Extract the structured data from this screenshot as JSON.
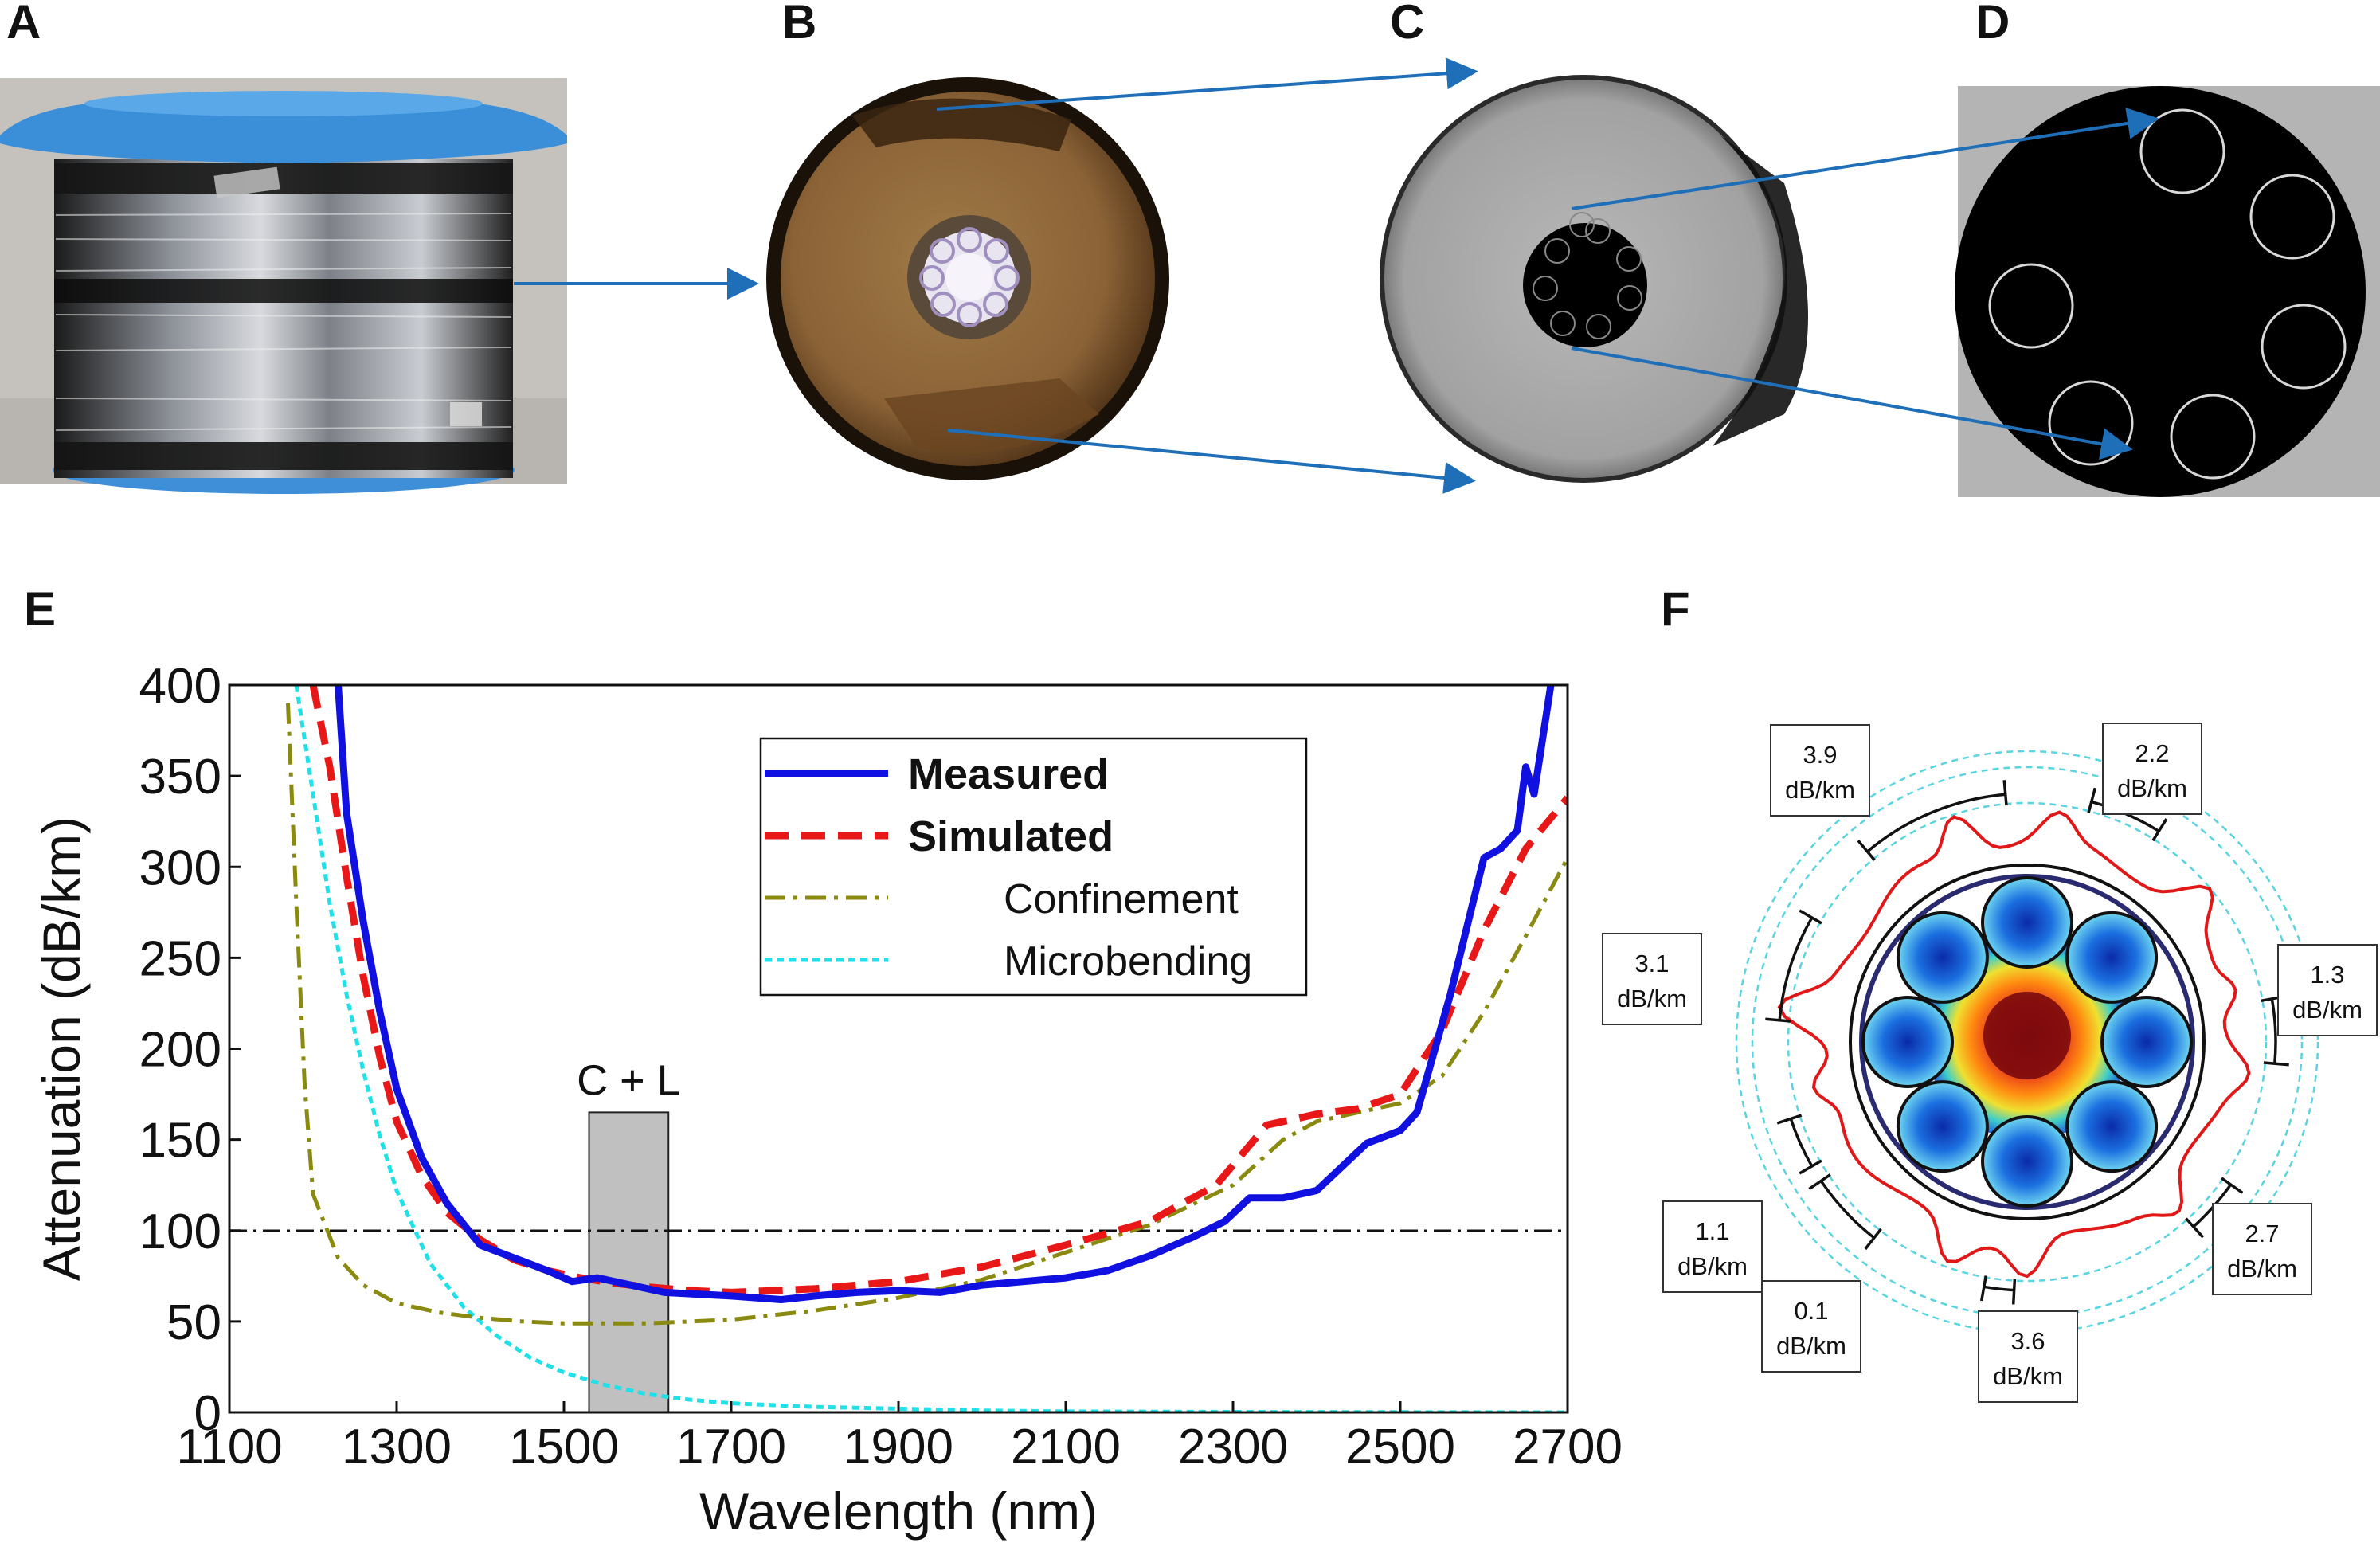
{
  "panels": {
    "a": {
      "letter": "A"
    },
    "b": {
      "letter": "B"
    },
    "c": {
      "letter": "C"
    },
    "d": {
      "letter": "D"
    },
    "e": {
      "letter": "E"
    },
    "f": {
      "letter": "F"
    }
  },
  "colors": {
    "measured": "#1010e0",
    "simulated": "#e81818",
    "confinement": "#8a8a10",
    "microbending": "#20e0e8",
    "arrow": "#1f6fb8",
    "band": "#c0c0c0"
  },
  "chart_data": [
    {
      "type": "line",
      "panel": "E",
      "title": "",
      "xlabel": "Wavelength (nm)",
      "ylabel": "Attenuation (dB/km)",
      "xlim": [
        1100,
        2700
      ],
      "ylim": [
        0,
        400
      ],
      "xticks": [
        1100,
        1300,
        1500,
        1700,
        1900,
        2100,
        2300,
        2500,
        2700
      ],
      "yticks": [
        0,
        50,
        100,
        150,
        200,
        250,
        300,
        350,
        400
      ],
      "legend_position": "top-right",
      "series": [
        {
          "name": "Measured",
          "style": "solid",
          "x": [
            1230,
            1240,
            1260,
            1280,
            1300,
            1330,
            1360,
            1400,
            1440,
            1480,
            1510,
            1540,
            1580,
            1620,
            1660,
            1700,
            1760,
            1800,
            1850,
            1900,
            1950,
            2000,
            2050,
            2100,
            2150,
            2200,
            2250,
            2290,
            2320,
            2360,
            2400,
            2430,
            2460,
            2500,
            2520,
            2560,
            2600,
            2620,
            2640,
            2650,
            2660,
            2670,
            2680
          ],
          "y": [
            400,
            330,
            270,
            220,
            178,
            140,
            115,
            92,
            85,
            78,
            72,
            74,
            70,
            66,
            65,
            64,
            62,
            64,
            66,
            67,
            66,
            70,
            72,
            74,
            78,
            86,
            96,
            105,
            118,
            118,
            122,
            135,
            148,
            155,
            165,
            230,
            305,
            310,
            320,
            355,
            340,
            370,
            400
          ]
        },
        {
          "name": "Simulated",
          "style": "dashed",
          "x": [
            1200,
            1220,
            1240,
            1260,
            1280,
            1300,
            1330,
            1360,
            1400,
            1440,
            1480,
            1520,
            1560,
            1600,
            1650,
            1700,
            1800,
            1900,
            2000,
            2100,
            2200,
            2280,
            2340,
            2400,
            2450,
            2500,
            2550,
            2600,
            2650,
            2700
          ],
          "y": [
            400,
            355,
            295,
            240,
            195,
            160,
            130,
            110,
            95,
            84,
            78,
            74,
            71,
            69,
            67,
            66,
            68,
            72,
            80,
            92,
            105,
            125,
            158,
            164,
            167,
            175,
            210,
            265,
            310,
            338
          ]
        },
        {
          "name": "Confinement",
          "style": "dashdot",
          "x": [
            1170,
            1180,
            1190,
            1200,
            1230,
            1260,
            1300,
            1350,
            1400,
            1450,
            1500,
            1550,
            1600,
            1700,
            1800,
            1900,
            2000,
            2100,
            2200,
            2300,
            2360,
            2400,
            2500,
            2550,
            2600,
            2650,
            2700
          ],
          "y": [
            390,
            280,
            180,
            120,
            85,
            70,
            60,
            55,
            52,
            50,
            49,
            49,
            49,
            51,
            56,
            63,
            73,
            88,
            103,
            125,
            150,
            160,
            170,
            185,
            220,
            262,
            305
          ]
        },
        {
          "name": "Microbending",
          "style": "dotted",
          "x": [
            1180,
            1200,
            1220,
            1240,
            1260,
            1280,
            1300,
            1340,
            1380,
            1420,
            1460,
            1500,
            1550,
            1600,
            1650,
            1700,
            1800,
            1900,
            2000,
            2100,
            2300,
            2500,
            2700
          ],
          "y": [
            400,
            340,
            280,
            230,
            188,
            152,
            122,
            82,
            58,
            42,
            30,
            22,
            15,
            10,
            7,
            5,
            3,
            2,
            1,
            0.5,
            0.2,
            0.1,
            0
          ]
        }
      ],
      "reference_line": {
        "y": 100,
        "style": "dashdot"
      },
      "annotations": [
        {
          "text": "C + L",
          "band_x": [
            1530,
            1625
          ],
          "band_y_top": 165
        }
      ]
    },
    {
      "type": "polar",
      "panel": "F",
      "segments": [
        {
          "label": "3.9",
          "unit": "dB/km"
        },
        {
          "label": "2.2",
          "unit": "dB/km"
        },
        {
          "label": "3.1",
          "unit": "dB/km"
        },
        {
          "label": "1.3",
          "unit": "dB/km"
        },
        {
          "label": "1.1",
          "unit": "dB/km"
        },
        {
          "label": "0.1",
          "unit": "dB/km"
        },
        {
          "label": "3.6",
          "unit": "dB/km"
        },
        {
          "label": "2.7",
          "unit": "dB/km"
        }
      ]
    }
  ]
}
